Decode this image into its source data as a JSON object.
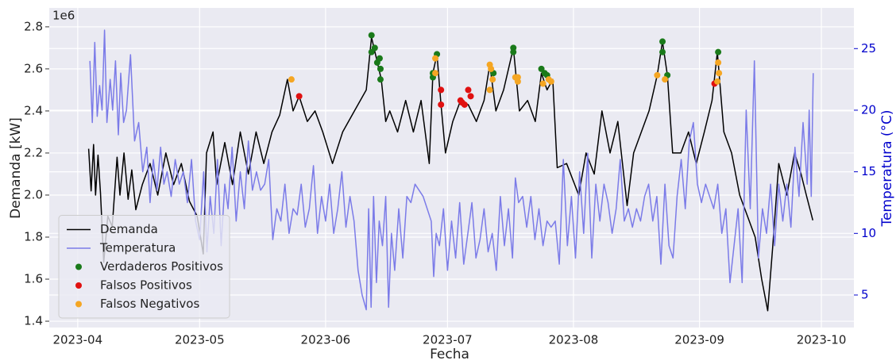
{
  "chart_data": {
    "type": "line",
    "y_offset_label": "1e6",
    "x_label": "Fecha",
    "y_label": "Demanda [kW]",
    "y2_label": "Temperatura (°C)",
    "xlim": [
      84,
      282
    ],
    "xticks": [
      {
        "value": 91,
        "label": "2023-04"
      },
      {
        "value": 121,
        "label": "2023-05"
      },
      {
        "value": 152,
        "label": "2023-06"
      },
      {
        "value": 182,
        "label": "2023-07"
      },
      {
        "value": 213,
        "label": "2023-08"
      },
      {
        "value": 244,
        "label": "2023-09"
      },
      {
        "value": 274,
        "label": "2023-10"
      }
    ],
    "ylim": [
      1.37,
      2.89
    ],
    "yticks": [
      1.4,
      1.6,
      1.8,
      {
        "value": 2,
        "label": "2.0"
      },
      2.2,
      2.4,
      2.6,
      2.8
    ],
    "y2lim": [
      2.36,
      28.3
    ],
    "y2ticks": [
      5,
      10,
      15,
      20,
      25
    ],
    "y2_color": "#0000cc",
    "grid": true,
    "legend": "lower left",
    "series": [
      {
        "name": "Demanda",
        "type": "line",
        "color": "#000000",
        "x": [
          93.7,
          94.3,
          94.9,
          95.4,
          96.0,
          96.6,
          97.4,
          98.4,
          99.5,
          100.7,
          101.4,
          102.4,
          103.4,
          104.3,
          105.3,
          106.9,
          108.8,
          110.7,
          112.7,
          114.6,
          116.5,
          118.5,
          120.4,
          121.9,
          122.7,
          124.3,
          125.2,
          127.2,
          129.1,
          131.0,
          133.0,
          134.9,
          136.8,
          138.8,
          140.7,
          142.6,
          144.0,
          145.5,
          147.5,
          149.4,
          151.3,
          153.7,
          156.2,
          159.1,
          162.0,
          163.3,
          164.5,
          165.7,
          166.8,
          167.8,
          169.7,
          171.7,
          173.6,
          175.5,
          177.5,
          178.4,
          179.4,
          180.4,
          181.5,
          183.3,
          185.2,
          187.1,
          189.1,
          191.0,
          192.4,
          193.9,
          195.8,
          198.2,
          199.7,
          201.7,
          203.6,
          205.1,
          206.5,
          207.9,
          209.0,
          211.3,
          214.3,
          216.1,
          218.1,
          220.0,
          222.0,
          223.9,
          226.2,
          227.8,
          229.7,
          231.6,
          233.6,
          234.9,
          236.1,
          237.4,
          239.4,
          241.3,
          243.2,
          245.2,
          247.1,
          248.4,
          250.0,
          251.9,
          253.9,
          255.8,
          257.7,
          259.3,
          260.8,
          262.0,
          263.5,
          265.5,
          267.4,
          269.0,
          270.3,
          271.9
        ],
        "values": [
          2.22,
          2.02,
          2.24,
          2.0,
          2.19,
          2.01,
          1.68,
          1.9,
          1.85,
          2.18,
          2.0,
          2.2,
          1.98,
          2.12,
          1.93,
          2.05,
          2.15,
          2.0,
          2.2,
          2.05,
          2.15,
          1.97,
          1.9,
          1.72,
          2.2,
          2.3,
          2.05,
          2.25,
          2.05,
          2.3,
          2.1,
          2.3,
          2.15,
          2.3,
          2.38,
          2.55,
          2.4,
          2.47,
          2.35,
          2.4,
          2.3,
          2.15,
          2.3,
          2.4,
          2.5,
          2.75,
          2.65,
          2.55,
          2.35,
          2.4,
          2.3,
          2.45,
          2.3,
          2.45,
          2.15,
          2.58,
          2.67,
          2.43,
          2.2,
          2.35,
          2.45,
          2.43,
          2.35,
          2.45,
          2.62,
          2.4,
          2.5,
          2.7,
          2.4,
          2.45,
          2.35,
          2.58,
          2.5,
          2.55,
          2.13,
          2.15,
          2.0,
          2.2,
          2.1,
          2.4,
          2.2,
          2.35,
          1.95,
          2.2,
          2.3,
          2.4,
          2.57,
          2.73,
          2.57,
          2.2,
          2.2,
          2.3,
          2.15,
          2.3,
          2.45,
          2.68,
          2.3,
          2.2,
          2.0,
          1.9,
          1.8,
          1.6,
          1.45,
          1.75,
          2.15,
          2.0,
          2.2,
          2.1,
          2.0,
          1.88
        ]
      },
      {
        "name": "Temperatura",
        "type": "line",
        "axis": "y2",
        "color": "#7b7be8",
        "x": [
          94,
          94.6,
          95.2,
          95.8,
          96.4,
          97,
          97.6,
          98.2,
          99,
          99.6,
          100.3,
          101,
          101.6,
          102.3,
          103,
          104,
          105,
          106,
          107,
          108,
          108.8,
          109.6,
          110.5,
          111.4,
          112.2,
          113,
          114,
          115,
          116,
          117,
          118,
          119,
          120,
          121,
          122,
          122.8,
          123.6,
          124.5,
          125.4,
          126.3,
          127.2,
          128,
          129,
          130,
          131,
          132,
          133,
          134,
          135,
          136,
          137,
          138,
          139,
          140,
          141,
          142,
          143,
          144,
          145,
          146,
          147,
          148,
          149,
          150,
          151,
          152,
          153,
          154,
          155,
          156,
          157,
          158,
          159,
          160,
          161,
          162,
          162.6,
          163.2,
          163.8,
          164.5,
          165.2,
          166,
          166.8,
          167.5,
          168.2,
          169,
          170,
          171,
          172,
          173,
          174,
          175,
          176,
          177,
          178,
          178.6,
          179.2,
          180,
          181,
          182,
          183,
          184,
          185,
          186,
          187,
          188,
          189,
          190,
          191,
          192,
          193,
          194,
          195,
          196,
          197,
          198,
          198.7,
          199.5,
          200.5,
          201.5,
          202.5,
          203.5,
          204.5,
          205.5,
          206.5,
          207.5,
          208.5,
          209.5,
          210.5,
          211.5,
          212.5,
          213.5,
          214.5,
          215.5,
          216.5,
          217.5,
          218.5,
          219.5,
          220.5,
          221.5,
          222.5,
          223.5,
          224.5,
          225.5,
          226.5,
          227.5,
          228.5,
          229.5,
          230.5,
          231.5,
          232.5,
          233.5,
          234.5,
          235.5,
          236.5,
          237.5,
          238.5,
          239.5,
          240.5,
          241.5,
          242.5,
          243.5,
          244.5,
          245.5,
          246.5,
          247.5,
          248.5,
          249.5,
          250.5,
          251.5,
          252.5,
          253.5,
          254.5,
          255.5,
          256.5,
          257.5,
          258.5,
          259.5,
          260.5,
          261.5,
          262.5,
          263.5,
          264.5,
          265.5,
          266.5,
          267.5,
          268.5,
          269.5,
          270.5,
          271,
          271.5,
          272
        ],
        "values": [
          24,
          19,
          25.5,
          19.5,
          22,
          20,
          26.5,
          19,
          22.5,
          20,
          24,
          18,
          23,
          19,
          20,
          24.5,
          17.5,
          19,
          15,
          17,
          12.5,
          16,
          13.5,
          17,
          14,
          15,
          13,
          16,
          14,
          15,
          12.5,
          16,
          11,
          9.5,
          15,
          8.5,
          13,
          10,
          16,
          9,
          14,
          12,
          17,
          11,
          15,
          12,
          17.5,
          13.5,
          15,
          13.5,
          14,
          16,
          9.5,
          12,
          11,
          14,
          10,
          12,
          11.5,
          14,
          10.5,
          12,
          15.5,
          10,
          13,
          11,
          14,
          10,
          12,
          15,
          10.5,
          13,
          11,
          7,
          5,
          3.8,
          12,
          4,
          13,
          6,
          11,
          9,
          13,
          4,
          10,
          7,
          12,
          8,
          13,
          12.5,
          14,
          13.5,
          13,
          12,
          11,
          6.5,
          10,
          9,
          12,
          7,
          11,
          8,
          12.5,
          7.5,
          10,
          12.5,
          8,
          9.5,
          12,
          8.5,
          10,
          7,
          13,
          9,
          12,
          8,
          14.5,
          12.5,
          13,
          10.5,
          13,
          9.5,
          12,
          9,
          11,
          10.5,
          11,
          7.5,
          16,
          9,
          13,
          8,
          15,
          10,
          16.5,
          8,
          14,
          11,
          14,
          12.5,
          10,
          12,
          16,
          11,
          12,
          10.5,
          12,
          11,
          13,
          14,
          11,
          13,
          7.5,
          14,
          9,
          8,
          13,
          16,
          12,
          17.5,
          19,
          14,
          12.5,
          14,
          13,
          12,
          14,
          10,
          12,
          6,
          9,
          12,
          6,
          20,
          12,
          24,
          8,
          12,
          10,
          14,
          9,
          14,
          11,
          14,
          10.5,
          17,
          13,
          19,
          14,
          20,
          13,
          23
        ]
      },
      {
        "name": "Verdaderos Positivos",
        "type": "scatter",
        "color": "#1a7a1a",
        "x": [
          163.3,
          163.3,
          164.1,
          164.7,
          165.3,
          165.5,
          165.5,
          178.4,
          178.4,
          179.4,
          193.3,
          198.2,
          198.2,
          205.1,
          205.9,
          206.5,
          234.9,
          234.9,
          236.1,
          248.6
        ],
        "values": [
          2.76,
          2.68,
          2.7,
          2.63,
          2.65,
          2.6,
          2.55,
          2.58,
          2.56,
          2.67,
          2.58,
          2.7,
          2.68,
          2.6,
          2.58,
          2.57,
          2.73,
          2.68,
          2.57,
          2.68
        ]
      },
      {
        "name": "Falsos Positivos",
        "type": "scatter",
        "color": "#e01010",
        "x": [
          145.5,
          180.4,
          180.4,
          185.2,
          185.6,
          186.2,
          187.1,
          187.7,
          247.7
        ],
        "values": [
          2.47,
          2.5,
          2.43,
          2.45,
          2.44,
          2.43,
          2.5,
          2.47,
          2.53
        ]
      },
      {
        "name": "Falsos Negativos",
        "type": "scatter",
        "color": "#f5a623",
        "x": [
          143.6,
          179.0,
          179.0,
          192.4,
          192.7,
          192.4,
          193.1,
          198.7,
          199.3,
          199.3,
          205.5,
          206.9,
          207.5,
          233.6,
          235.5,
          248.6,
          248.8,
          248.4
        ],
        "values": [
          2.55,
          2.65,
          2.58,
          2.62,
          2.6,
          2.5,
          2.55,
          2.56,
          2.56,
          2.54,
          2.53,
          2.55,
          2.54,
          2.57,
          2.55,
          2.63,
          2.58,
          2.54
        ]
      }
    ]
  }
}
